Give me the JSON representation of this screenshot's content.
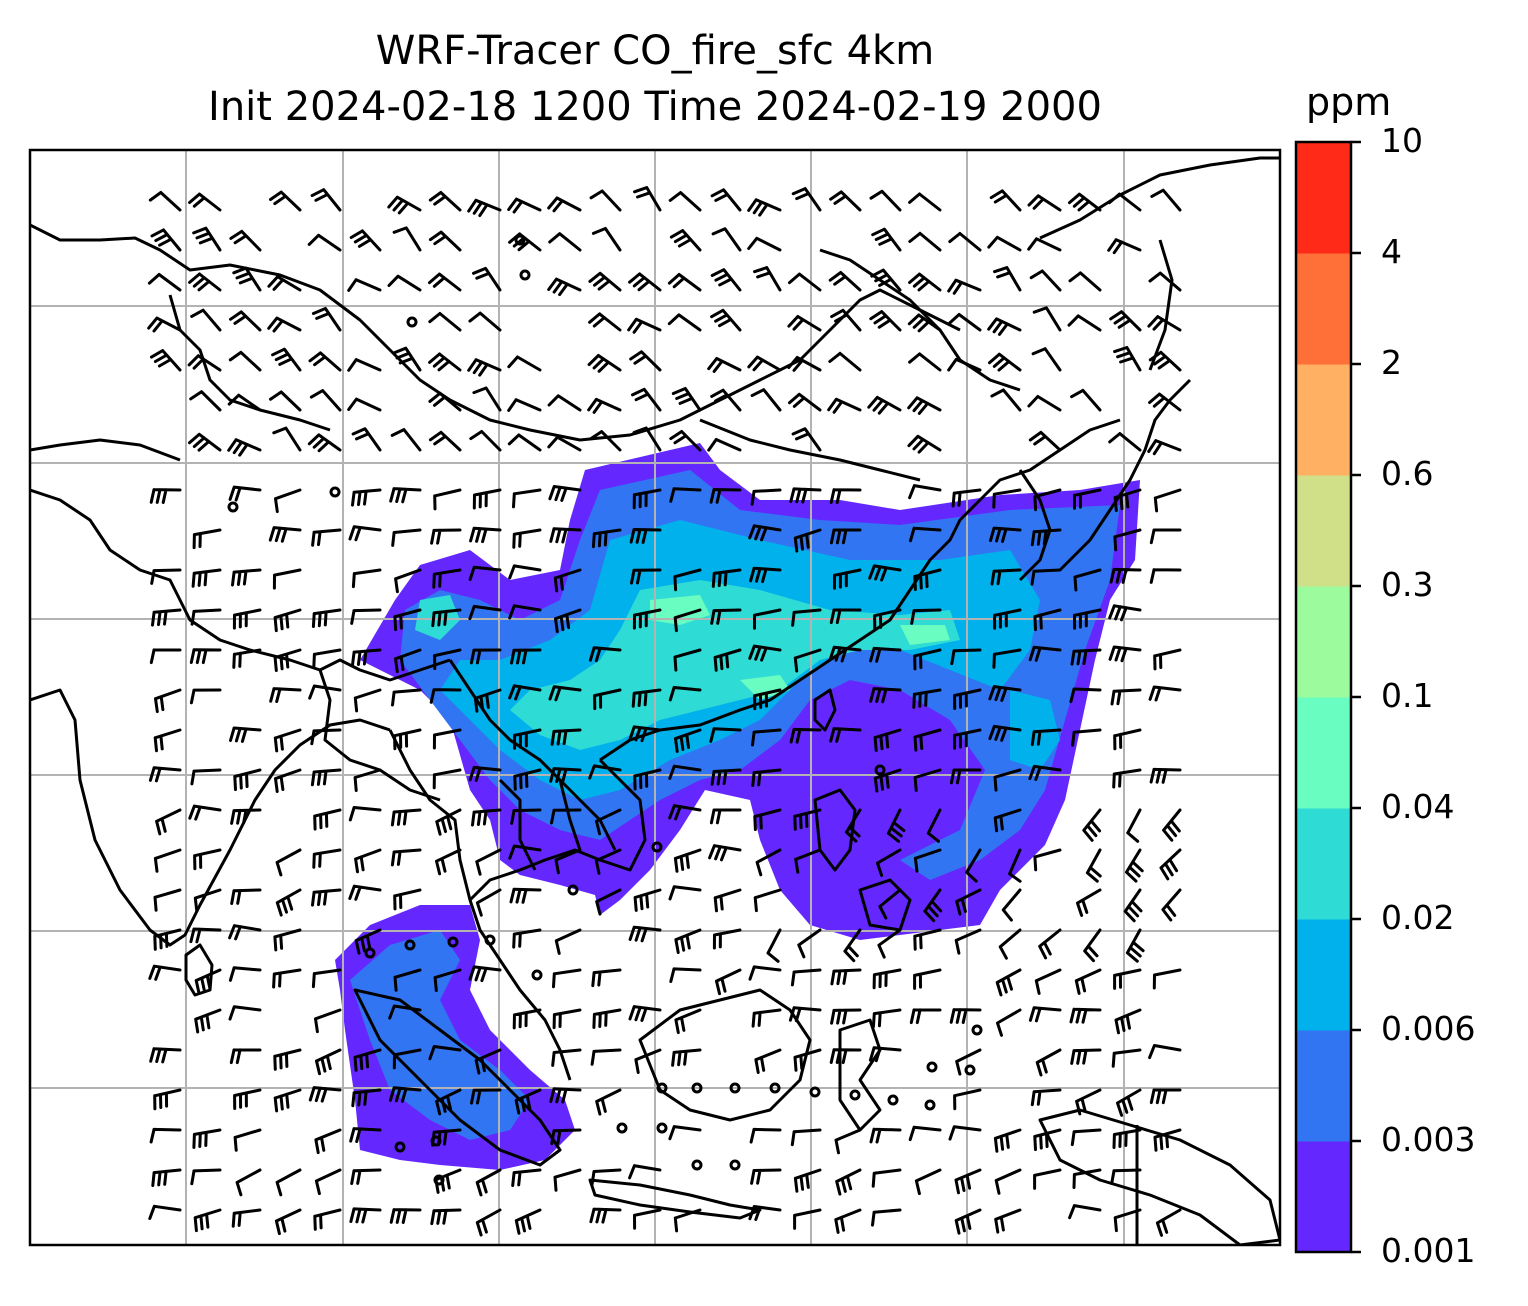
{
  "title_line1": "WRF-Tracer CO_fire_sfc 4km",
  "title_line2": "Init 2024-02-18 1200 Time 2024-02-19 2000",
  "colorbar": {
    "unit": "ppm",
    "ticks": [
      "0.001",
      "0.003",
      "0.006",
      "0.02",
      "0.04",
      "0.1",
      "0.3",
      "0.6",
      "2",
      "4",
      "10"
    ],
    "colors": [
      "#6428ff",
      "#3275f2",
      "#00b1ec",
      "#2edcd5",
      "#6afdc1",
      "#9cfb9c",
      "#cfe088",
      "#ffb062",
      "#ff7038",
      "#ff2a17"
    ]
  },
  "map": {
    "variable": "CO_fire_sfc",
    "grid_color": "#b3b3b3",
    "coastline_color": "#000000",
    "features": [
      "coastlines",
      "country-borders",
      "lat-lon-gridlines",
      "wind-barbs",
      "calm-circles"
    ]
  }
}
